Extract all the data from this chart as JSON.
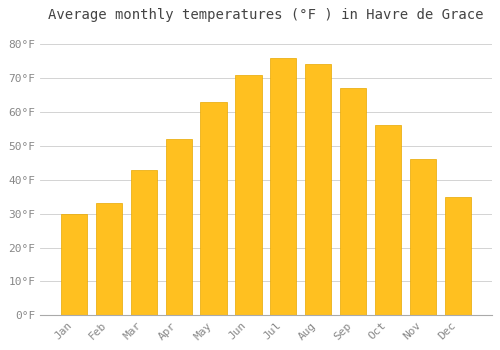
{
  "title": "Average monthly temperatures (°F ) in Havre de Grace",
  "months": [
    "Jan",
    "Feb",
    "Mar",
    "Apr",
    "May",
    "Jun",
    "Jul",
    "Aug",
    "Sep",
    "Oct",
    "Nov",
    "Dec"
  ],
  "values": [
    30,
    33,
    43,
    52,
    63,
    71,
    76,
    74,
    67,
    56,
    46,
    35
  ],
  "bar_color": "#FFC020",
  "bar_edge_color": "#E8A800",
  "background_color": "#FFFFFF",
  "grid_color": "#CCCCCC",
  "ylim": [
    0,
    84
  ],
  "yticks": [
    0,
    10,
    20,
    30,
    40,
    50,
    60,
    70,
    80
  ],
  "title_fontsize": 10,
  "tick_fontsize": 8,
  "tick_label_color": "#888888",
  "title_color": "#444444",
  "bar_width": 0.75
}
